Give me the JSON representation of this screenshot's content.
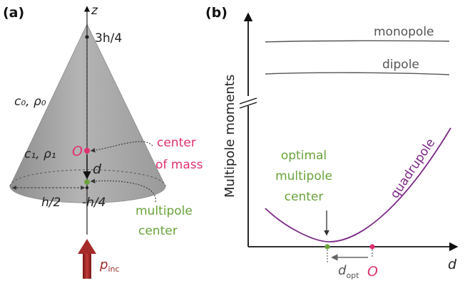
{
  "panel_a": {
    "label": "(a)",
    "axis_z": "z",
    "apex_label": "3h/4",
    "outside_medium": "c₀, ρ₀",
    "inside_medium": "c₁, ρ₁",
    "origin_label": "O",
    "shift_label": "d",
    "radius_label": "h/2",
    "base_offset_label": "-h/4",
    "center_of_mass_label": [
      "center",
      "of mass"
    ],
    "multipole_center_label": [
      "multipole",
      "center"
    ],
    "incident_label": "p",
    "incident_sub": "inc",
    "colors": {
      "cone": "#a9a9a9",
      "center_of_mass": "#e0306f",
      "multipole_center": "#6aa23a",
      "incident_arrow": "#a52a2a"
    }
  },
  "panel_b": {
    "label": "(b)",
    "y_axis_label": "Multipole moments",
    "x_axis_label": "d",
    "monopole_label": "monopole",
    "dipole_label": "dipole",
    "quadrupole_label": "quadrupole",
    "optimal_label": [
      "optimal",
      "multipole",
      "center"
    ],
    "d_opt_main": "d",
    "d_opt_sub": "opt",
    "origin_label": "O",
    "colors": {
      "flat_curves": "#555555",
      "quadrupole": "#7b2a86",
      "optimum": "#6aa23a",
      "origin": "#e0306f"
    }
  }
}
